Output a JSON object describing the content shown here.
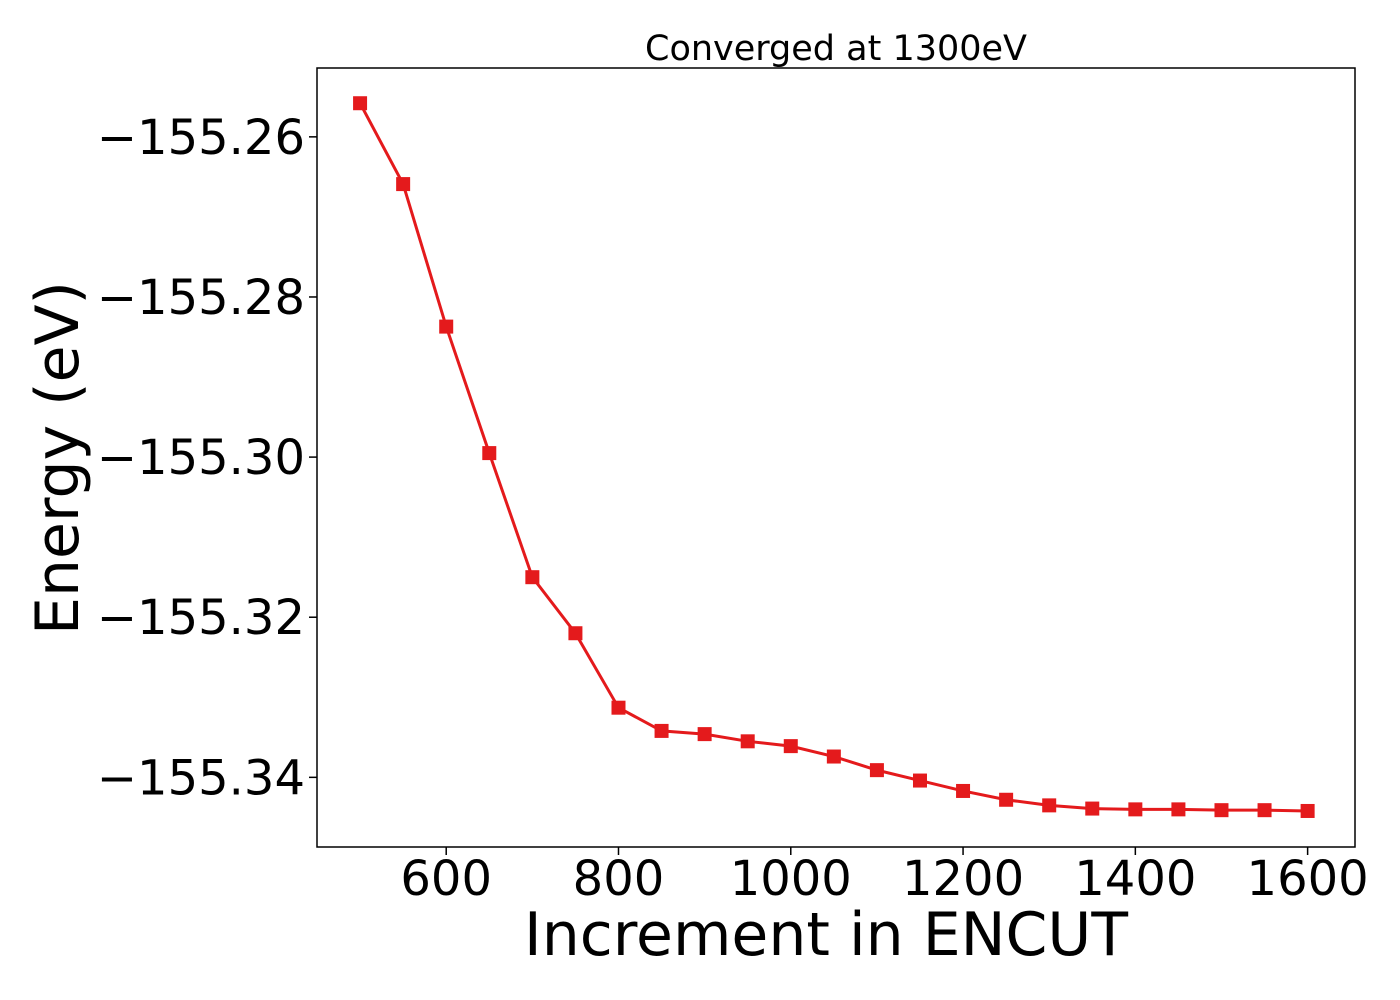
{
  "chart_data": {
    "type": "line",
    "title": "Converged at 1300eV",
    "xlabel": "Increment in ENCUT",
    "ylabel": "Energy (eV)",
    "xlim": [
      450,
      1655
    ],
    "ylim": [
      -155.3487,
      -155.2514
    ],
    "x_ticks": [
      600,
      800,
      1000,
      1200,
      1400,
      1600
    ],
    "x_tick_labels": [
      "600",
      "800",
      "1000",
      "1200",
      "1400",
      "1600"
    ],
    "y_ticks": [
      -155.26,
      -155.28,
      -155.3,
      -155.32,
      -155.34
    ],
    "y_tick_labels": [
      "−155.26",
      "−155.28",
      "−155.30",
      "−155.32",
      "−155.34"
    ],
    "grid": false,
    "marker": "square",
    "color": "#e41a1c",
    "series": [
      {
        "x": [
          500,
          550,
          600,
          650,
          700,
          750,
          800,
          850,
          900,
          950,
          1000,
          1050,
          1100,
          1150,
          1200,
          1250,
          1300,
          1350,
          1400,
          1450,
          1500,
          1550,
          1600
        ],
        "values": [
          -155.2558,
          -155.2659,
          -155.2837,
          -155.2995,
          -155.315,
          -155.322,
          -155.3313,
          -155.3342,
          -155.3346,
          -155.3355,
          -155.3361,
          -155.3374,
          -155.3391,
          -155.3404,
          -155.3417,
          -155.3428,
          -155.3435,
          -155.3439,
          -155.344,
          -155.344,
          -155.3441,
          -155.3441,
          -155.3442
        ]
      }
    ]
  }
}
